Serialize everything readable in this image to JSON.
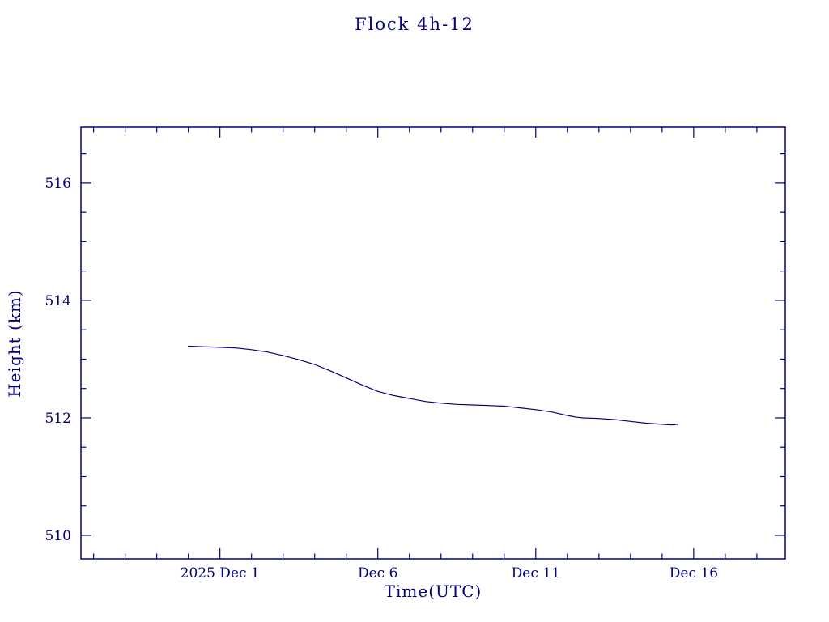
{
  "colors": {
    "accent": "#000080",
    "background": "#ffffff"
  },
  "chart_data": {
    "type": "line",
    "title": "Flock 4h-12",
    "xlabel": "Time(UTC)",
    "ylabel": "Height (km)",
    "legend": "none",
    "grid": false,
    "x_axis": {
      "unit": "day of December 2025 (Nov 30 = 0)",
      "range": [
        -3.4,
        18.9
      ],
      "minor_tick_step": 1,
      "major_ticks": [
        {
          "value": 1,
          "label": "2025 Dec 1"
        },
        {
          "value": 6,
          "label": "Dec 6"
        },
        {
          "value": 11,
          "label": "Dec 11"
        },
        {
          "value": 16,
          "label": "Dec 16"
        }
      ]
    },
    "y_axis": {
      "range": [
        509.6,
        516.95
      ],
      "minor_tick_step": 0.5,
      "major_ticks": [
        {
          "value": 510,
          "label": "510"
        },
        {
          "value": 512,
          "label": "512"
        },
        {
          "value": 514,
          "label": "514"
        },
        {
          "value": 516,
          "label": "516"
        }
      ]
    },
    "series": [
      {
        "name": "height",
        "color": "#000080",
        "points": [
          [
            0.0,
            513.22
          ],
          [
            0.5,
            513.21
          ],
          [
            1.0,
            513.2
          ],
          [
            1.5,
            513.19
          ],
          [
            2.0,
            513.16
          ],
          [
            2.5,
            513.12
          ],
          [
            3.0,
            513.06
          ],
          [
            3.5,
            512.99
          ],
          [
            4.0,
            512.91
          ],
          [
            4.5,
            512.8
          ],
          [
            5.0,
            512.68
          ],
          [
            5.5,
            512.56
          ],
          [
            6.0,
            512.45
          ],
          [
            6.5,
            512.38
          ],
          [
            7.0,
            512.33
          ],
          [
            7.5,
            512.28
          ],
          [
            8.0,
            512.25
          ],
          [
            8.5,
            512.23
          ],
          [
            9.0,
            512.22
          ],
          [
            9.5,
            512.21
          ],
          [
            10.0,
            512.2
          ],
          [
            10.5,
            512.17
          ],
          [
            11.0,
            512.14
          ],
          [
            11.5,
            512.1
          ],
          [
            12.0,
            512.04
          ],
          [
            12.3,
            512.01
          ],
          [
            12.5,
            512.0
          ],
          [
            13.0,
            511.99
          ],
          [
            13.5,
            511.97
          ],
          [
            14.0,
            511.94
          ],
          [
            14.5,
            511.91
          ],
          [
            15.0,
            511.89
          ],
          [
            15.3,
            511.88
          ],
          [
            15.5,
            511.89
          ]
        ]
      }
    ]
  }
}
